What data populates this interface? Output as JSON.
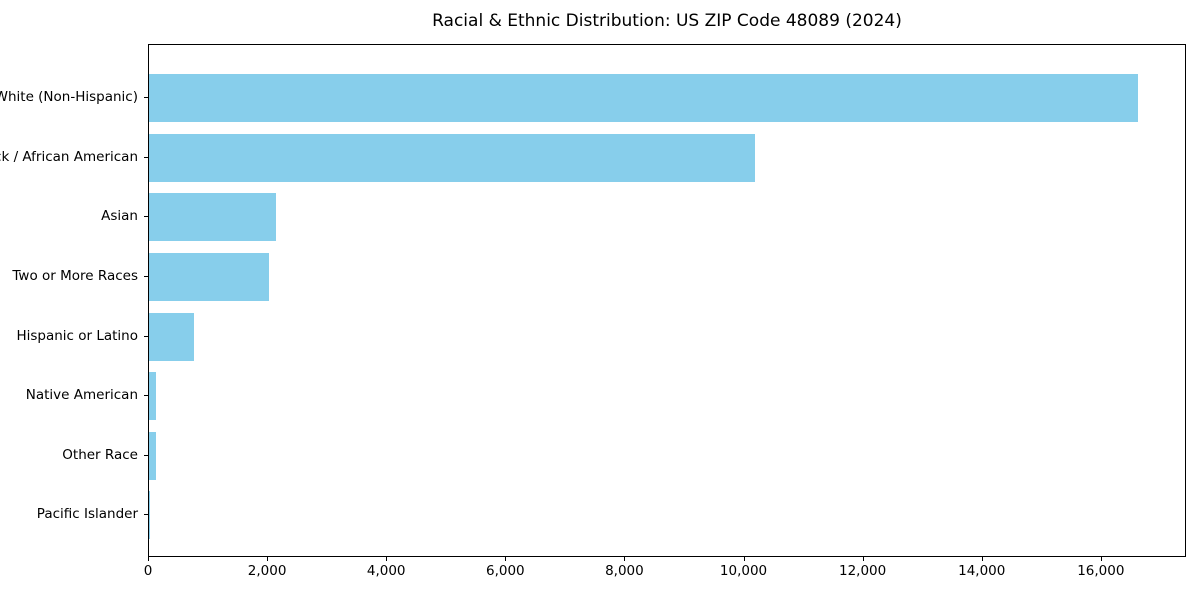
{
  "title": "Racial & Ethnic Distribution: US ZIP Code 48089 (2024)",
  "chart_data": {
    "type": "bar",
    "orientation": "horizontal",
    "title": "Racial & Ethnic Distribution: US ZIP Code 48089 (2024)",
    "categories": [
      "White (Non-Hispanic)",
      "Black / African American",
      "Asian",
      "Two or More Races",
      "Hispanic or Latino",
      "Native American",
      "Other Race",
      "Pacific Islander"
    ],
    "values": [
      16600,
      10170,
      2130,
      2020,
      750,
      120,
      110,
      5
    ],
    "xlabel": "",
    "ylabel": "",
    "xlim": [
      0,
      17430
    ],
    "x_tick_values": [
      0,
      2000,
      4000,
      6000,
      8000,
      10000,
      12000,
      14000,
      16000
    ],
    "x_tick_labels": [
      "0",
      "2,000",
      "4,000",
      "6,000",
      "8,000",
      "10,000",
      "12,000",
      "14,000",
      "16,000"
    ],
    "bar_color": "#87CEEB",
    "grid": false,
    "legend_position": "none",
    "background_color": "#ffffff",
    "axis_color": "#000000"
  }
}
